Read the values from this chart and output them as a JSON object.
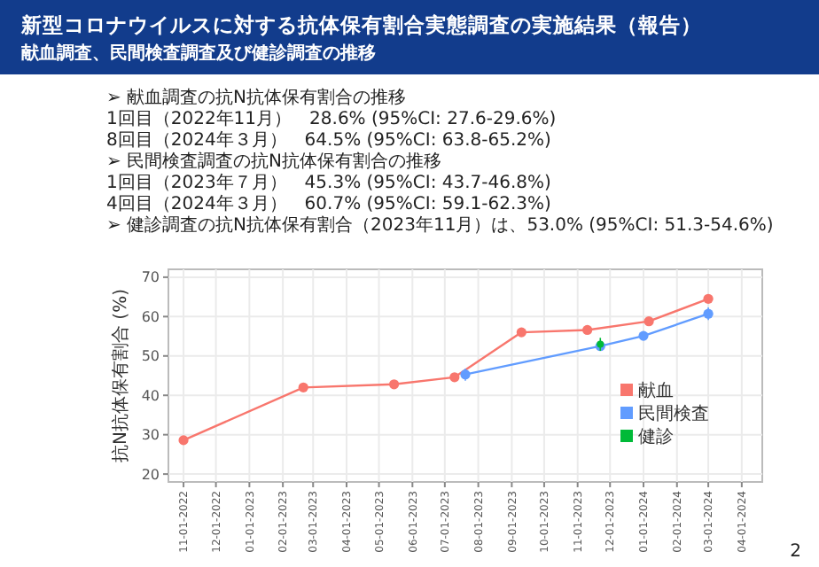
{
  "chart_data": {
    "type": "line",
    "title": "新型コロナウイルスに対する抗体保有割合実態調査の実施結果（報告）",
    "subtitle": "献血調査、民間検査調査及び健診調査の推移",
    "annotations": [
      "➢ 献血調査の抗N抗体保有割合の推移",
      "1回目（2022年11月）　28.6% (95%CI: 27.6-29.6%)",
      "8回目（2024年３月）　64.5% (95%CI: 63.8-65.2%)",
      "➢ 民間検査調査の抗N抗体保有割合の推移",
      "1回目（2023年７月）　45.3% (95%CI: 43.7-46.8%)",
      "4回目（2024年３月）　60.7% (95%CI: 59.1-62.3%)",
      "➢ 健診調査の抗N抗体保有割合（2023年11月）は、53.0% (95%CI: 51.3-54.6%)",
      "2"
    ],
    "ylabel": "抗N抗体保有割合 (%)",
    "series": [
      {
        "name": "献血",
        "color": "#f8766d",
        "x": [
          "2022-11-01",
          "2023-02-20",
          "2023-05-15",
          "2023-07-10",
          "2023-09-10",
          "2023-11-10",
          "2024-01-06",
          "2024-03-01"
        ],
        "values": [
          28.6,
          42,
          42.8,
          44.6,
          56,
          56.6,
          58.8,
          64.5
        ],
        "errors": [
          [
            27.6,
            29.6
          ],
          null,
          null,
          null,
          null,
          null,
          null,
          [
            63.8,
            65.2
          ]
        ]
      },
      {
        "name": "民間検査",
        "color": "#619cff",
        "x": [
          "2023-07-20",
          "2023-11-22",
          "2024-01-01",
          "2024-03-01"
        ],
        "values": [
          45.3,
          52.5,
          55.1,
          60.7
        ],
        "errors": [
          [
            43.7,
            46.8
          ],
          null,
          null,
          [
            59.1,
            62.3
          ]
        ]
      },
      {
        "name": "健診",
        "color": "#00ba38",
        "x": [
          "2023-11-22"
        ],
        "values": [
          53.0
        ],
        "errors": [
          [
            51.3,
            54.6
          ]
        ]
      }
    ],
    "xlim": [
      "2022-10-18",
      "2024-04-20"
    ],
    "xticks": [
      {
        "value": "2022-11-01",
        "label": "11-01-2022"
      },
      {
        "value": "2022-12-01",
        "label": "12-01-2022"
      },
      {
        "value": "2023-01-01",
        "label": "01-01-2023"
      },
      {
        "value": "2023-02-01",
        "label": "02-01-2023"
      },
      {
        "value": "2023-03-01",
        "label": "03-01-2023"
      },
      {
        "value": "2023-04-01",
        "label": "04-01-2023"
      },
      {
        "value": "2023-05-01",
        "label": "05-01-2023"
      },
      {
        "value": "2023-06-01",
        "label": "06-01-2023"
      },
      {
        "value": "2023-07-01",
        "label": "07-01-2023"
      },
      {
        "value": "2023-08-01",
        "label": "08-01-2023"
      },
      {
        "value": "2023-09-01",
        "label": "09-01-2023"
      },
      {
        "value": "2023-10-01",
        "label": "10-01-2023"
      },
      {
        "value": "2023-11-01",
        "label": "11-01-2023"
      },
      {
        "value": "2023-12-01",
        "label": "12-01-2023"
      },
      {
        "value": "2024-01-01",
        "label": "01-01-2024"
      },
      {
        "value": "2024-02-01",
        "label": "02-01-2024"
      },
      {
        "value": "2024-03-01",
        "label": "03-01-2024"
      },
      {
        "value": "2024-04-01",
        "label": "04-01-2024"
      }
    ],
    "ylim": [
      18,
      72
    ],
    "yticks": [
      20,
      30,
      40,
      50,
      60,
      70
    ],
    "grid": true,
    "legend": "bottom right",
    "marker": "circle",
    "line_style": "solid"
  }
}
